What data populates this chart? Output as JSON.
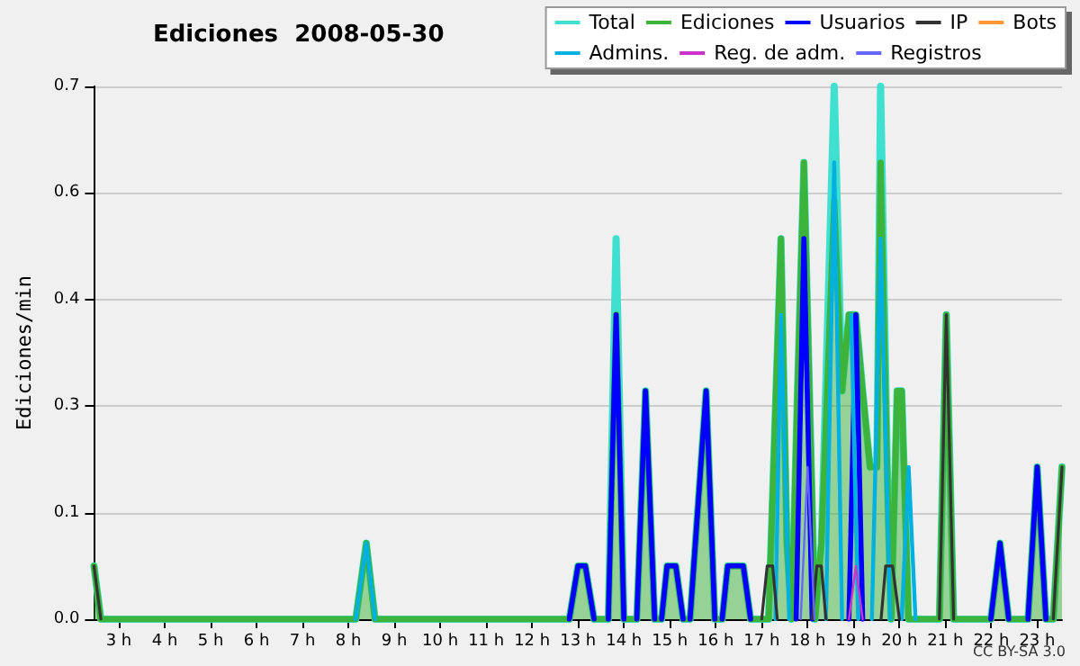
{
  "chart_data": {
    "type": "line",
    "title": "Ediciones  2008-05-30",
    "ylabel": "Ediciones/min",
    "xlim": [
      2.46,
      23.54
    ],
    "ylim": [
      0,
      0.7
    ],
    "xticks": [
      {
        "value": 3,
        "label": "3 h"
      },
      {
        "value": 4,
        "label": "4 h"
      },
      {
        "value": 5,
        "label": "5 h"
      },
      {
        "value": 6,
        "label": "6 h"
      },
      {
        "value": 7,
        "label": "7 h"
      },
      {
        "value": 8,
        "label": "8 h"
      },
      {
        "value": 9,
        "label": "9 h"
      },
      {
        "value": 10,
        "label": "10 h"
      },
      {
        "value": 11,
        "label": "11 h"
      },
      {
        "value": 12,
        "label": "12 h"
      },
      {
        "value": 13,
        "label": "13 h"
      },
      {
        "value": 14,
        "label": "14 h"
      },
      {
        "value": 15,
        "label": "15 h"
      },
      {
        "value": 16,
        "label": "16 h"
      },
      {
        "value": 17,
        "label": "17 h"
      },
      {
        "value": 18,
        "label": "18 h"
      },
      {
        "value": 19,
        "label": "19 h"
      },
      {
        "value": 20,
        "label": "20 h"
      },
      {
        "value": 21,
        "label": "21 h"
      },
      {
        "value": 22,
        "label": "22 h"
      },
      {
        "value": 23,
        "label": "23 h"
      }
    ],
    "yticks": [
      {
        "value": 0,
        "label": "0.0"
      },
      {
        "value": 0.14,
        "label": "0.1"
      },
      {
        "value": 0.28,
        "label": "0.3"
      },
      {
        "value": 0.42,
        "label": "0.4"
      },
      {
        "value": 0.56,
        "label": "0.6"
      },
      {
        "value": 0.7,
        "label": "0.7"
      }
    ],
    "grid": "y",
    "legend": "top right",
    "marker": "none",
    "line_style": "solid",
    "annotations": [
      "CC BY-SA 3.0"
    ],
    "series": [
      {
        "name": "Total",
        "color": "#40e0d0",
        "x": [
          2.46,
          2.61,
          8.16,
          8.39,
          8.58,
          12.81,
          13.0,
          13.16,
          13.35,
          13.66,
          13.83,
          14.0,
          14.28,
          14.47,
          14.67,
          14.82,
          14.94,
          15.13,
          15.29,
          15.44,
          15.79,
          15.98,
          16.14,
          16.26,
          16.6,
          16.76,
          17.15,
          17.42,
          17.55,
          17.65,
          17.78,
          17.92,
          18.08,
          18.16,
          18.3,
          18.58,
          18.75,
          18.9,
          19.05,
          19.2,
          19.36,
          19.51,
          19.59,
          19.75,
          19.82,
          19.95,
          20.05,
          20.2,
          20.87,
          21.02,
          21.18,
          21.99,
          22.19,
          22.38,
          22.8,
          23.0,
          23.19,
          23.35,
          23.54
        ],
        "values": [
          0.07,
          0,
          0,
          0.1,
          0,
          0,
          0.07,
          0.07,
          0,
          0,
          0.5,
          0,
          0,
          0.3,
          0,
          0,
          0.07,
          0.07,
          0,
          0,
          0.3,
          0,
          0,
          0.07,
          0.07,
          0,
          0,
          0.5,
          0.1,
          0,
          0.3,
          0.6,
          0.2,
          0,
          0.1,
          0.7,
          0.3,
          0.4,
          0.4,
          0.3,
          0.2,
          0.2,
          0.7,
          0.15,
          0,
          0.3,
          0.3,
          0,
          0,
          0.4,
          0,
          0,
          0.1,
          0,
          0,
          0.2,
          0,
          0,
          0.2
        ]
      },
      {
        "name": "Ediciones",
        "type": "area",
        "color": "#3cb43c",
        "x": [
          2.46,
          2.61,
          8.16,
          8.39,
          8.58,
          12.81,
          13.0,
          13.16,
          13.35,
          13.66,
          13.83,
          14.0,
          14.28,
          14.47,
          14.67,
          14.82,
          14.94,
          15.13,
          15.29,
          15.44,
          15.79,
          15.98,
          16.14,
          16.26,
          16.6,
          16.76,
          17.15,
          17.42,
          17.55,
          17.65,
          17.78,
          17.92,
          18.08,
          18.16,
          18.3,
          18.58,
          18.75,
          18.9,
          19.05,
          19.2,
          19.36,
          19.51,
          19.59,
          19.75,
          19.82,
          19.95,
          20.05,
          20.2,
          20.87,
          21.02,
          21.18,
          21.99,
          22.19,
          22.38,
          22.8,
          23.0,
          23.19,
          23.35,
          23.54
        ],
        "values": [
          0.07,
          0,
          0,
          0.1,
          0,
          0,
          0.07,
          0.07,
          0,
          0,
          0.4,
          0,
          0,
          0.3,
          0,
          0,
          0.07,
          0.07,
          0,
          0,
          0.3,
          0,
          0,
          0.07,
          0.07,
          0,
          0,
          0.5,
          0.1,
          0,
          0.3,
          0.6,
          0.2,
          0,
          0.1,
          0.55,
          0.3,
          0.4,
          0.4,
          0.3,
          0.2,
          0.2,
          0.6,
          0.15,
          0,
          0.3,
          0.3,
          0,
          0,
          0.4,
          0,
          0,
          0.1,
          0,
          0,
          0.2,
          0,
          0,
          0.2
        ]
      },
      {
        "name": "Usuarios",
        "color": "#0000ff",
        "x": [
          12.81,
          13.0,
          13.16,
          13.35,
          13.5,
          13.66,
          13.83,
          14.0,
          14.1,
          14.28,
          14.47,
          14.67,
          14.75,
          14.82,
          14.94,
          15.13,
          15.29,
          15.35,
          15.44,
          15.79,
          15.98,
          16.05,
          16.14,
          16.26,
          16.6,
          16.76,
          17.3,
          17.75,
          17.92,
          18.1,
          18.5,
          18.9,
          19.05,
          19.2,
          21.0,
          21.99,
          22.19,
          22.38,
          22.6,
          22.8,
          23.0,
          23.19
        ],
        "values": [
          0,
          0.07,
          0.07,
          0,
          null,
          0,
          0.4,
          0,
          null,
          0,
          0.3,
          0,
          null,
          0,
          0.07,
          0.07,
          0,
          null,
          0,
          0.3,
          0,
          null,
          0,
          0.07,
          0.07,
          0,
          null,
          0,
          0.5,
          0,
          null,
          0,
          0.4,
          0,
          null,
          0,
          0.1,
          0,
          null,
          0,
          0.2,
          0
        ]
      },
      {
        "name": "IP",
        "color": "#333333",
        "x": [
          2.46,
          2.61,
          16.9,
          17.0,
          17.12,
          17.24,
          17.34,
          17.9,
          18.1,
          18.2,
          18.3,
          18.4,
          19.0,
          19.6,
          19.7,
          19.85,
          20.0,
          20.5,
          20.87,
          21.02,
          21.18,
          22.0,
          23.35,
          23.54
        ],
        "values": [
          0.07,
          0,
          null,
          0,
          0.07,
          0.07,
          0,
          null,
          0,
          0.07,
          0.07,
          0,
          null,
          0,
          0.07,
          0.07,
          0,
          null,
          0,
          0.4,
          0,
          null,
          0,
          0.2
        ]
      },
      {
        "name": "Bots",
        "color": "#ff9933"
      },
      {
        "name": "Admins.",
        "color": "#00b0e0",
        "x": [
          8.16,
          8.39,
          8.58,
          12.0,
          17.3,
          17.42,
          17.6,
          18.0,
          18.4,
          18.58,
          18.75,
          18.85,
          18.95,
          19.1,
          19.3,
          19.4,
          19.59,
          19.8,
          20.0,
          20.05,
          20.2,
          20.35
        ],
        "values": [
          0,
          0.1,
          0,
          null,
          0,
          0.4,
          0,
          null,
          0,
          0.6,
          0,
          null,
          0.4,
          0,
          null,
          0,
          0.5,
          0,
          null,
          0,
          0.2,
          0
        ]
      },
      {
        "name": "Reg. de adm.",
        "color": "#cc33cc",
        "x": [
          18.9,
          19.05,
          19.2
        ],
        "values": [
          0,
          0.07,
          0
        ]
      },
      {
        "name": "Registros",
        "color": "#6666ff",
        "x": [
          17.85,
          18.0,
          18.15
        ],
        "values": [
          0,
          0.2,
          0
        ]
      }
    ]
  }
}
